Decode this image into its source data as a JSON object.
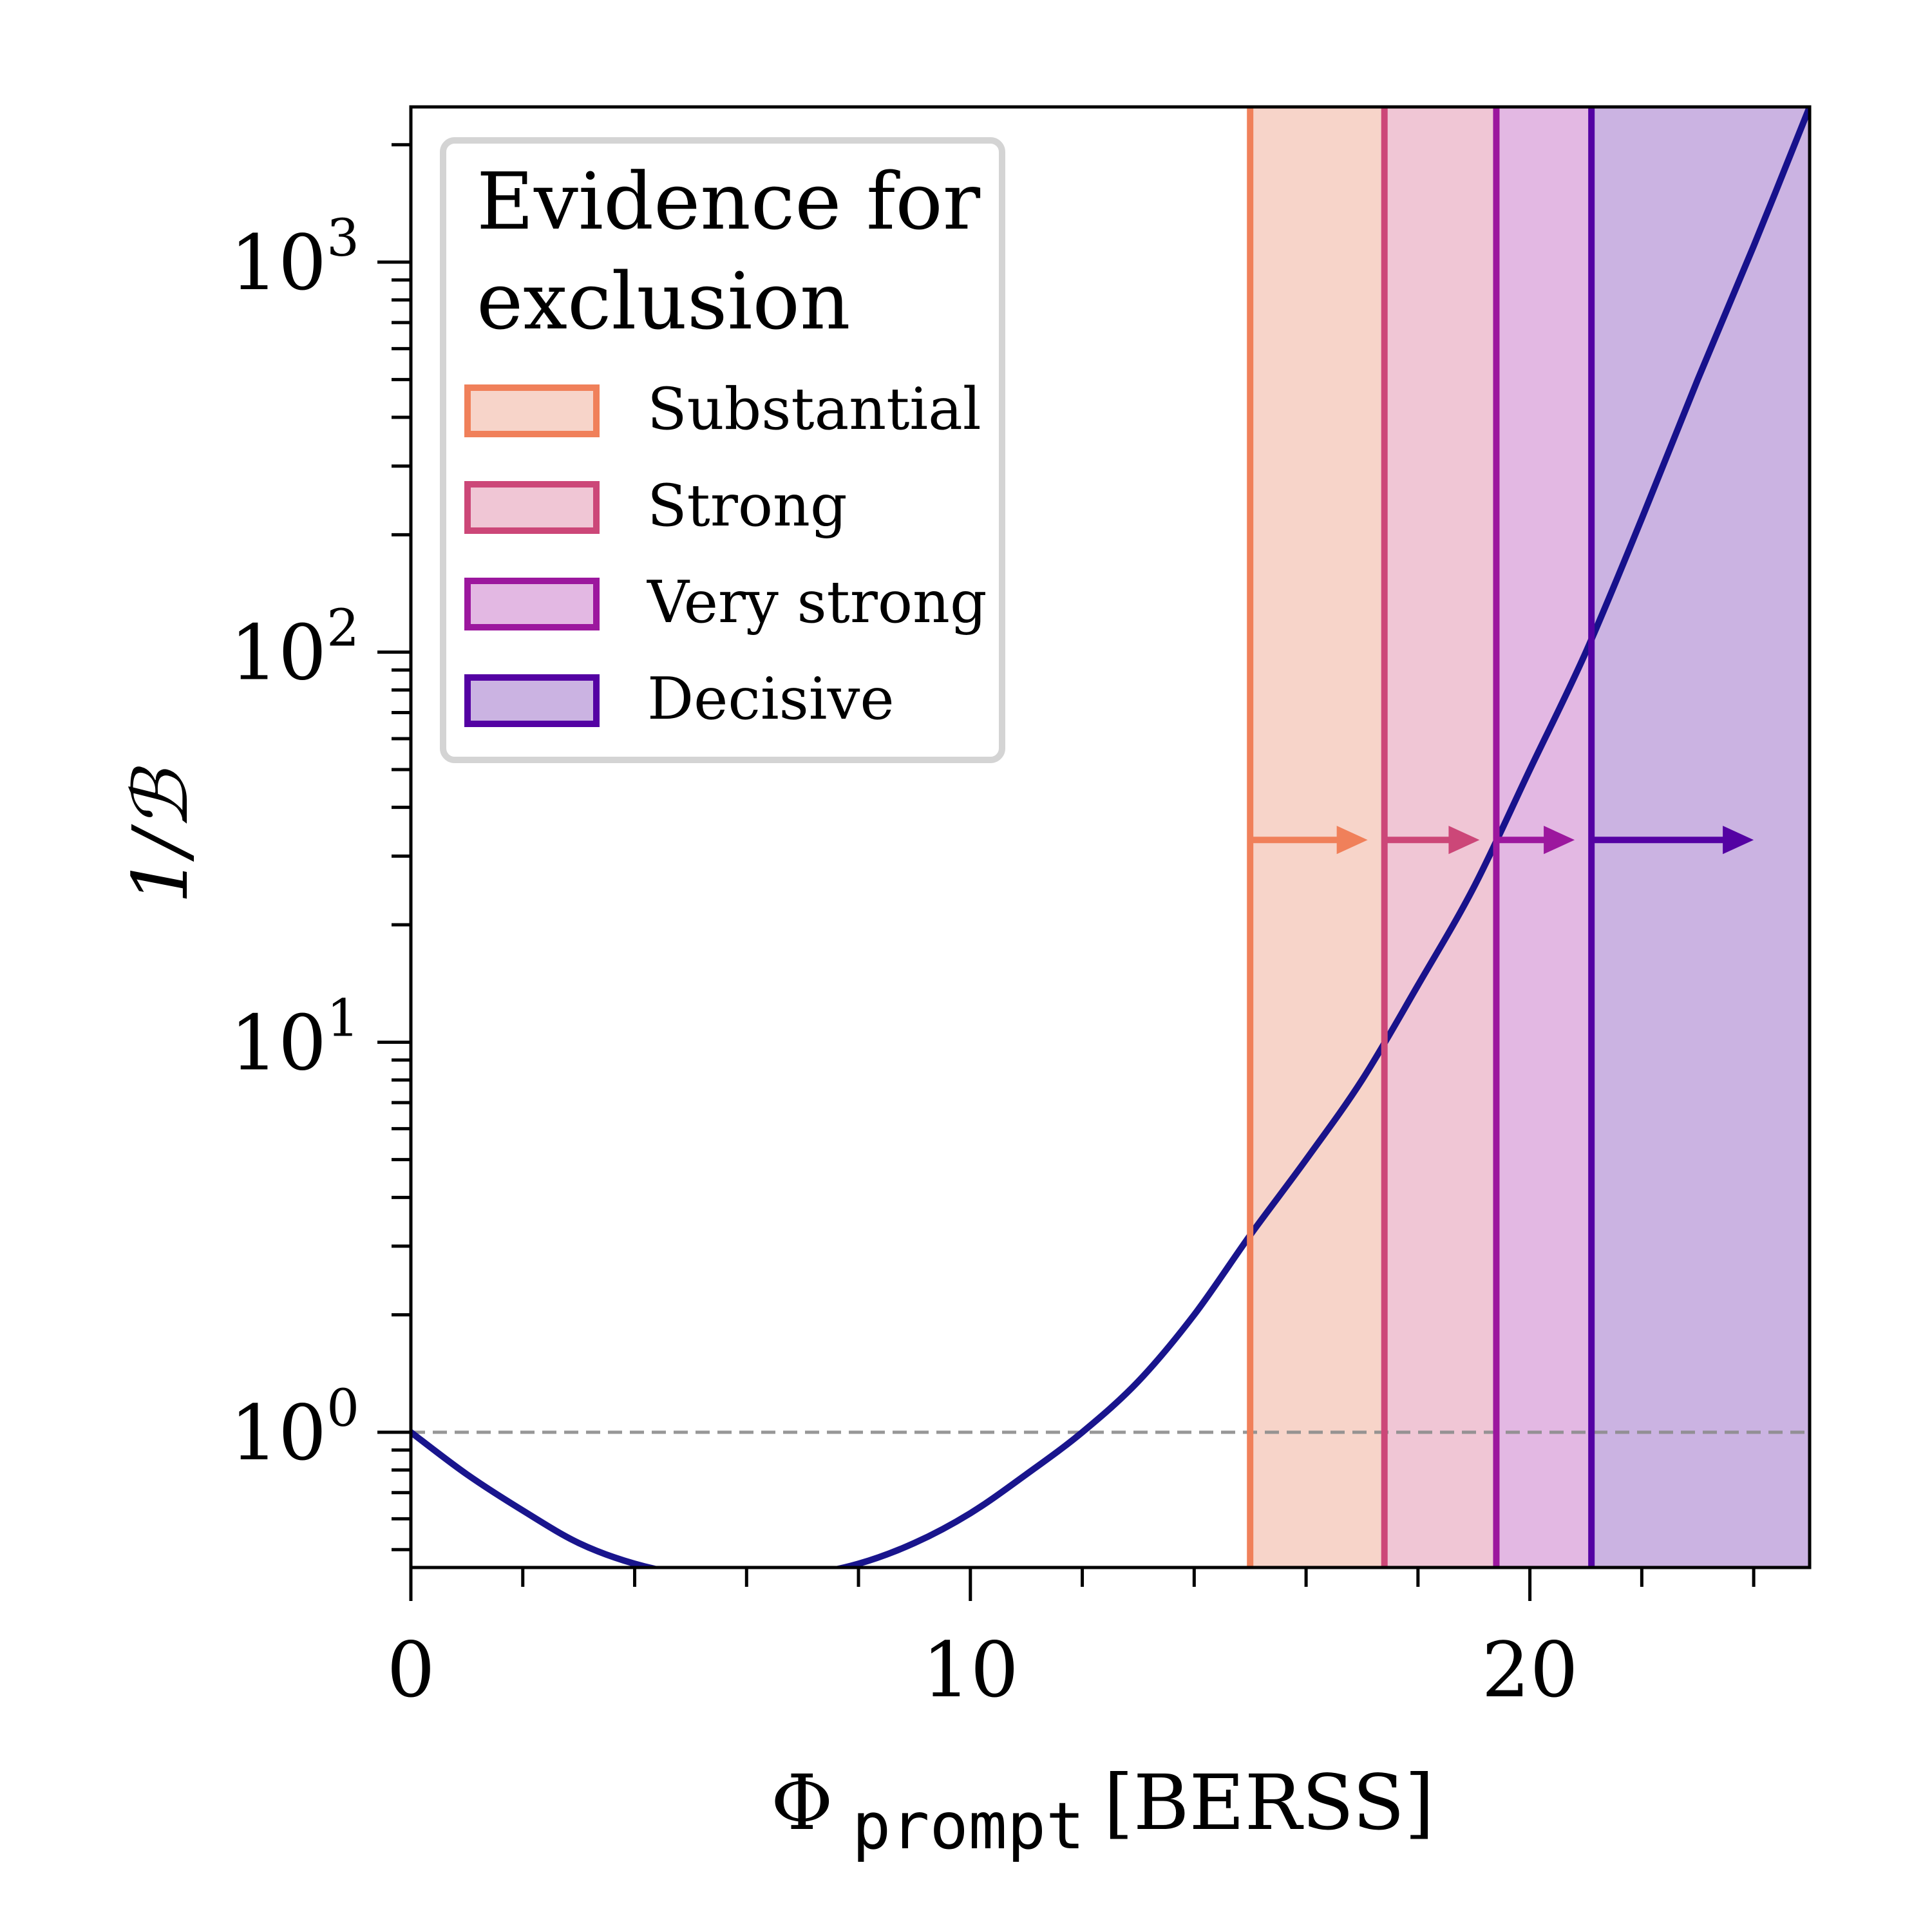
{
  "chart_data": {
    "type": "line",
    "xlabel": {
      "symbol": "Φ",
      "subscript": "prompt",
      "unit": "[BERSS]"
    },
    "ylabel": "1/ℬ",
    "xlim": [
      0,
      25
    ],
    "ylim": [
      0.45,
      2500
    ],
    "y_scale": "log",
    "x_ticks": [
      0,
      10,
      20
    ],
    "x_tick_labels": [
      "0",
      "10",
      "20"
    ],
    "y_ticks": [
      1,
      10,
      100,
      1000
    ],
    "y_tick_labels": [
      {
        "base": "10",
        "exp": "0"
      },
      {
        "base": "10",
        "exp": "1"
      },
      {
        "base": "10",
        "exp": "2"
      },
      {
        "base": "10",
        "exp": "3"
      }
    ],
    "grid": false,
    "reference_line": {
      "y": 1,
      "style": "dashed",
      "color": "#8c8c8c"
    },
    "series": [
      {
        "color": "#0d0887",
        "x": [
          0,
          1,
          2,
          3,
          4,
          5,
          6,
          7,
          8,
          9,
          10,
          11,
          12,
          13,
          14,
          15,
          16,
          17,
          18,
          19,
          20,
          21,
          22,
          23,
          24,
          25
        ],
        "y": [
          1.0,
          0.78,
          0.63,
          0.52,
          0.46,
          0.43,
          0.42,
          0.43,
          0.46,
          0.52,
          0.62,
          0.78,
          1.0,
          1.35,
          2.0,
          3.2,
          5.0,
          8.0,
          14.0,
          25.0,
          50.0,
          100.0,
          220.0,
          500.0,
          1100.0,
          2500.0
        ]
      }
    ],
    "thresholds": [
      {
        "label": "Substantial",
        "x": 15.0,
        "color": "#f0805a",
        "fill": "#f7d4c9"
      },
      {
        "label": "Strong",
        "x": 17.4,
        "color": "#cc4778",
        "fill": "#f0c6d5"
      },
      {
        "label": "Very strong",
        "x": 19.4,
        "color": "#9c179e",
        "fill": "#e3b8e3"
      },
      {
        "label": "Decisive",
        "x": 21.1,
        "color": "#5402a3",
        "fill": "#cbb3e2"
      }
    ],
    "arrow_y": 33,
    "arrow_ends": [
      17.1,
      19.1,
      20.8,
      24.0
    ],
    "legend": {
      "title_line1": "Evidence for",
      "title_line2": "exclusion",
      "placement": "top-left"
    }
  }
}
